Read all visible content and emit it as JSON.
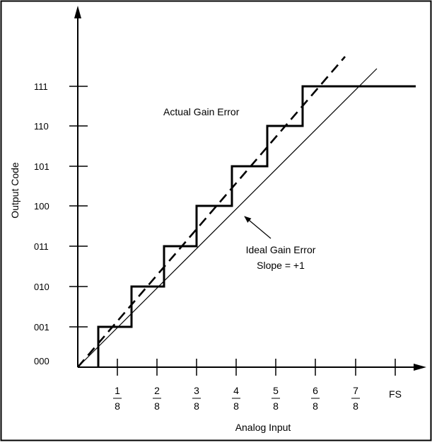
{
  "axis": {
    "y_title": "Output Code",
    "x_title": "Analog Input"
  },
  "y_codes": [
    "000",
    "001",
    "010",
    "011",
    "100",
    "101",
    "110",
    "111"
  ],
  "x_ticks": [
    {
      "num": "1",
      "den": "8"
    },
    {
      "num": "2",
      "den": "8"
    },
    {
      "num": "3",
      "den": "8"
    },
    {
      "num": "4",
      "den": "8"
    },
    {
      "num": "5",
      "den": "8"
    },
    {
      "num": "6",
      "den": "8"
    },
    {
      "num": "7",
      "den": "8"
    },
    {
      "label": "FS"
    }
  ],
  "annotations": {
    "actual": "Actual Gain Error",
    "ideal_line1": "Ideal Gain Error",
    "ideal_line2": "Slope = +1"
  },
  "colors": {
    "ink": "#000000",
    "background": "#ffffff"
  }
}
